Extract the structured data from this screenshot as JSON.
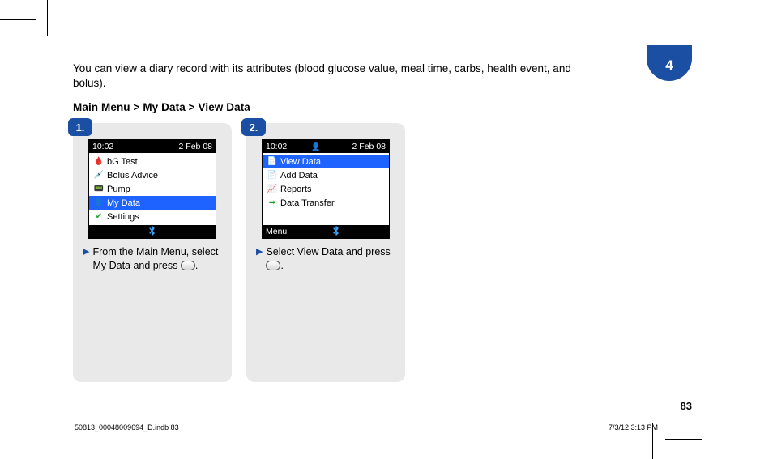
{
  "chapter_number": "4",
  "intro_text": "You can view a diary record with its attributes (blood glucose value, meal time, carbs, health event, and bolus).",
  "breadcrumb": "Main Menu > My Data > View Data",
  "page_number": "83",
  "imprint_left": "50813_00048009694_D.indb   83",
  "imprint_right": "7/3/12   3:13 PM",
  "steps": [
    {
      "badge": "1.",
      "caption_before": "From the Main Menu, select My Data and press ",
      "caption_after": ".",
      "screen": {
        "time": "10:02",
        "date": "2 Feb 08",
        "show_sb_icon": false,
        "footer_left": "",
        "rows": [
          {
            "icon": "🩸",
            "icon_color": "#d01414",
            "label": "bG Test",
            "selected": false
          },
          {
            "icon": "💉",
            "icon_color": "#1b5ccb",
            "label": "Bolus Advice",
            "selected": false
          },
          {
            "icon": "📟",
            "icon_color": "#1b5ccb",
            "label": "Pump",
            "selected": false
          },
          {
            "icon": "👤",
            "icon_color": "#e8a91a",
            "label": "My Data",
            "selected": true
          },
          {
            "icon": "✔",
            "icon_color": "#1aa62a",
            "label": "Settings",
            "selected": false
          }
        ]
      }
    },
    {
      "badge": "2.",
      "caption_before": "Select View Data and press ",
      "caption_after": ".",
      "screen": {
        "time": "10:02",
        "date": "2 Feb 08",
        "show_sb_icon": true,
        "footer_left": "Menu",
        "rows": [
          {
            "icon": "📄",
            "icon_color": "#1b5ccb",
            "label": "View Data",
            "selected": true
          },
          {
            "icon": "📄",
            "icon_color": "#1b5ccb",
            "label": "Add Data",
            "selected": false
          },
          {
            "icon": "📈",
            "icon_color": "#1aa62a",
            "label": "Reports",
            "selected": false
          },
          {
            "icon": "➡",
            "icon_color": "#1aa62a",
            "label": "Data Transfer",
            "selected": false
          }
        ]
      }
    }
  ]
}
